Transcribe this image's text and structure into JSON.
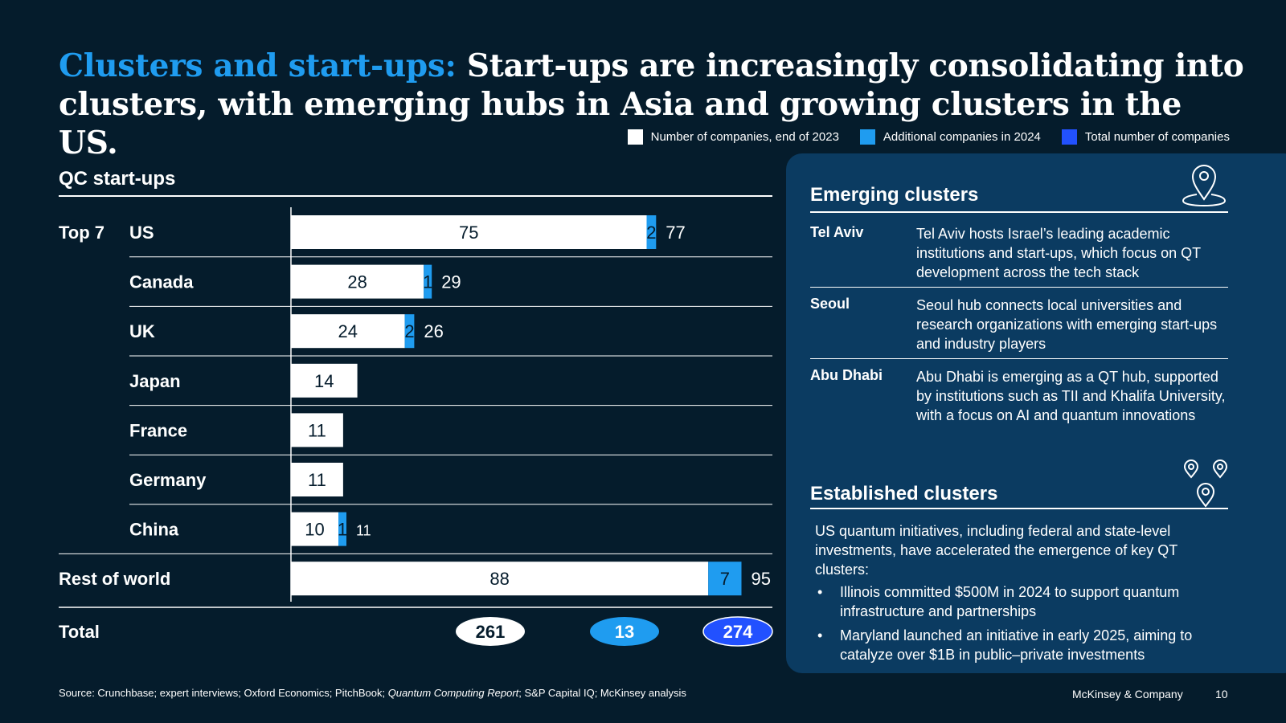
{
  "title": {
    "accent": "Clusters and start-ups:",
    "rest": " Start-ups are increasingly consolidating into clusters, with emerging hubs in Asia and growing clusters in the US."
  },
  "legend": [
    {
      "label": "Number of companies, end of 2023",
      "color": "#ffffff"
    },
    {
      "label": "Additional companies in 2024",
      "color": "#1f9cf0"
    },
    {
      "label": "Total number of companies",
      "color": "#2251ff"
    }
  ],
  "chart_title": "QC start-ups",
  "chart_data": {
    "type": "bar",
    "orientation": "horizontal",
    "stacked": true,
    "group_label": "Top 7",
    "categories": [
      "US",
      "Canada",
      "UK",
      "Japan",
      "France",
      "Germany",
      "China",
      "Rest of world"
    ],
    "series": [
      {
        "name": "Number of companies, end of 2023",
        "values": [
          75,
          28,
          24,
          14,
          11,
          11,
          10,
          88
        ]
      },
      {
        "name": "Additional companies in 2024",
        "values": [
          2,
          1,
          2,
          0,
          0,
          0,
          1,
          7
        ]
      },
      {
        "name": "Total number of companies",
        "values": [
          77,
          29,
          26,
          14,
          11,
          11,
          11,
          95
        ]
      }
    ],
    "totals": {
      "label": "Total",
      "end_2023": "261",
      "additional_2024": "13",
      "total": "274"
    },
    "colors": {
      "base": "#ffffff",
      "added": "#1f9cf0",
      "total": "#2251ff"
    }
  },
  "panel": {
    "emerging_title": "Emerging clusters",
    "emerging": [
      {
        "city": "Tel Aviv",
        "desc": "Tel Aviv hosts Israel’s leading academic institutions and start-ups, which focus on QT development across the tech stack"
      },
      {
        "city": "Seoul",
        "desc": "Seoul hub connects local universities and research organizations with emerging start-ups and industry players"
      },
      {
        "city": "Abu Dhabi",
        "desc": "Abu Dhabi is emerging as a QT hub, supported by institutions such as TII and Khalifa University, with a focus on AI and quantum innovations"
      }
    ],
    "established_title": "Established clusters",
    "established_intro": "US quantum initiatives, including federal and state-level investments, have accelerated the emergence of key QT clusters:",
    "bullets": [
      "Illinois committed $500M in 2024 to support quantum infrastructure and partnerships",
      "Maryland launched an initiative in early 2025, aiming to catalyze over $1B in public–private investments"
    ]
  },
  "footer": {
    "source_prefix": "Source: Crunchbase; expert interviews; Oxford Economics; PitchBook; ",
    "source_italic": "Quantum Computing Report",
    "source_suffix": "; S&P Capital IQ; McKinsey analysis",
    "brand": "McKinsey & Company",
    "page": "10"
  }
}
